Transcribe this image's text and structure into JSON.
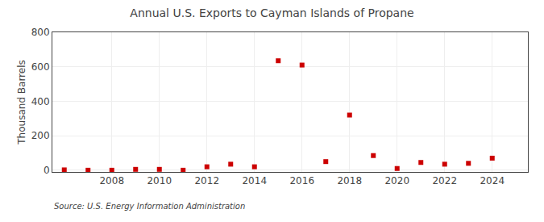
{
  "chart_data": {
    "type": "scatter",
    "title": "Annual U.S. Exports to Cayman Islands of Propane",
    "ylabel": "Thousand Barrels",
    "annotations": [
      "Source: U.S. Energy Information Administration"
    ],
    "x": [
      2006,
      2007,
      2008,
      2009,
      2010,
      2011,
      2012,
      2013,
      2014,
      2015,
      2016,
      2017,
      2018,
      2019,
      2020,
      2021,
      2022,
      2023,
      2024
    ],
    "values": [
      2,
      0,
      0,
      5,
      5,
      0,
      20,
      35,
      20,
      635,
      610,
      50,
      320,
      85,
      10,
      45,
      35,
      40,
      70
    ],
    "color": "#cc0000",
    "marker": "square",
    "xlim": [
      2005.5,
      2025.5
    ],
    "xticks": [
      2008,
      2010,
      2012,
      2014,
      2016,
      2018,
      2020,
      2022,
      2024
    ],
    "ylim": [
      -10,
      800
    ],
    "yticks": [
      0,
      200,
      400,
      600,
      800
    ],
    "grid": true
  }
}
